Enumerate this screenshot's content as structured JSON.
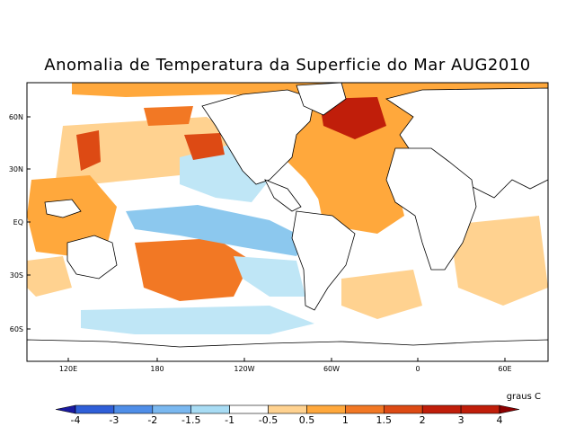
{
  "title": "Anomalia de Temperatura da Superficie do Mar AUG2010",
  "units": "graus C",
  "lat_ticks": [
    "60N",
    "30N",
    "EQ",
    "30S",
    "60S"
  ],
  "lon_ticks": [
    "120E",
    "180",
    "120W",
    "60W",
    "0",
    "60E"
  ],
  "colorbar": {
    "labels": [
      "-4",
      "-3",
      "-2",
      "-1.5",
      "-1",
      "-0.5",
      "0.5",
      "1",
      "1.5",
      "2",
      "3",
      "4"
    ],
    "colors": [
      "#1a1aa0",
      "#2f5fd8",
      "#4f8ee8",
      "#7ab8f0",
      "#a8dcf4",
      "#ffffff",
      "#ffd290",
      "#ffa83c",
      "#f27824",
      "#dd4a14",
      "#c01e0a",
      "#8c0000"
    ]
  },
  "palette": {
    "warm1": "#ffd290",
    "warm2": "#ffa83c",
    "warm3": "#f27824",
    "warm4": "#dd4a14",
    "warm5": "#c01e0a",
    "cool1": "#bfe6f6",
    "cool2": "#8cc8ee",
    "cool3": "#5a9ee6",
    "cool4": "#3a6fd6",
    "land": "#ffffff",
    "coast": "#000000"
  }
}
